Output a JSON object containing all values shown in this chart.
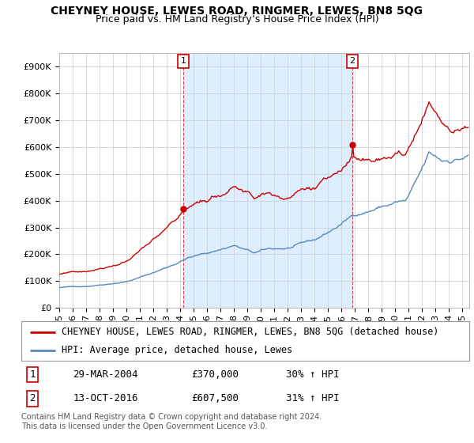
{
  "title": "CHEYNEY HOUSE, LEWES ROAD, RINGMER, LEWES, BN8 5QG",
  "subtitle": "Price paid vs. HM Land Registry’s House Price Index (HPI)",
  "ylabel_ticks": [
    "£0",
    "£100K",
    "£200K",
    "£300K",
    "£400K",
    "£500K",
    "£600K",
    "£700K",
    "£800K",
    "£900K"
  ],
  "ytick_values": [
    0,
    100000,
    200000,
    300000,
    400000,
    500000,
    600000,
    700000,
    800000,
    900000
  ],
  "ylim": [
    0,
    950000
  ],
  "xlim_start": 1995.0,
  "xlim_end": 2025.5,
  "red_color": "#cc0000",
  "blue_color": "#5588bb",
  "shade_color": "#ddeeff",
  "marker1_year": 2004.24,
  "marker1_value": 370000,
  "marker2_year": 2016.79,
  "marker2_value": 607500,
  "marker1_label": "1",
  "marker2_label": "2",
  "legend_red_label": "CHEYNEY HOUSE, LEWES ROAD, RINGMER, LEWES, BN8 5QG (detached house)",
  "legend_blue_label": "HPI: Average price, detached house, Lewes",
  "table_rows": [
    [
      "1",
      "29-MAR-2004",
      "£370,000",
      "30% ↑ HPI"
    ],
    [
      "2",
      "13-OCT-2016",
      "£607,500",
      "31% ↑ HPI"
    ]
  ],
  "footnote": "Contains HM Land Registry data © Crown copyright and database right 2024.\nThis data is licensed under the Open Government Licence v3.0.",
  "bg_color": "#ffffff",
  "plot_bg_color": "#ffffff",
  "grid_color": "#cccccc",
  "title_fontsize": 10,
  "subtitle_fontsize": 9,
  "tick_fontsize": 8,
  "legend_fontsize": 8.5,
  "table_fontsize": 9
}
